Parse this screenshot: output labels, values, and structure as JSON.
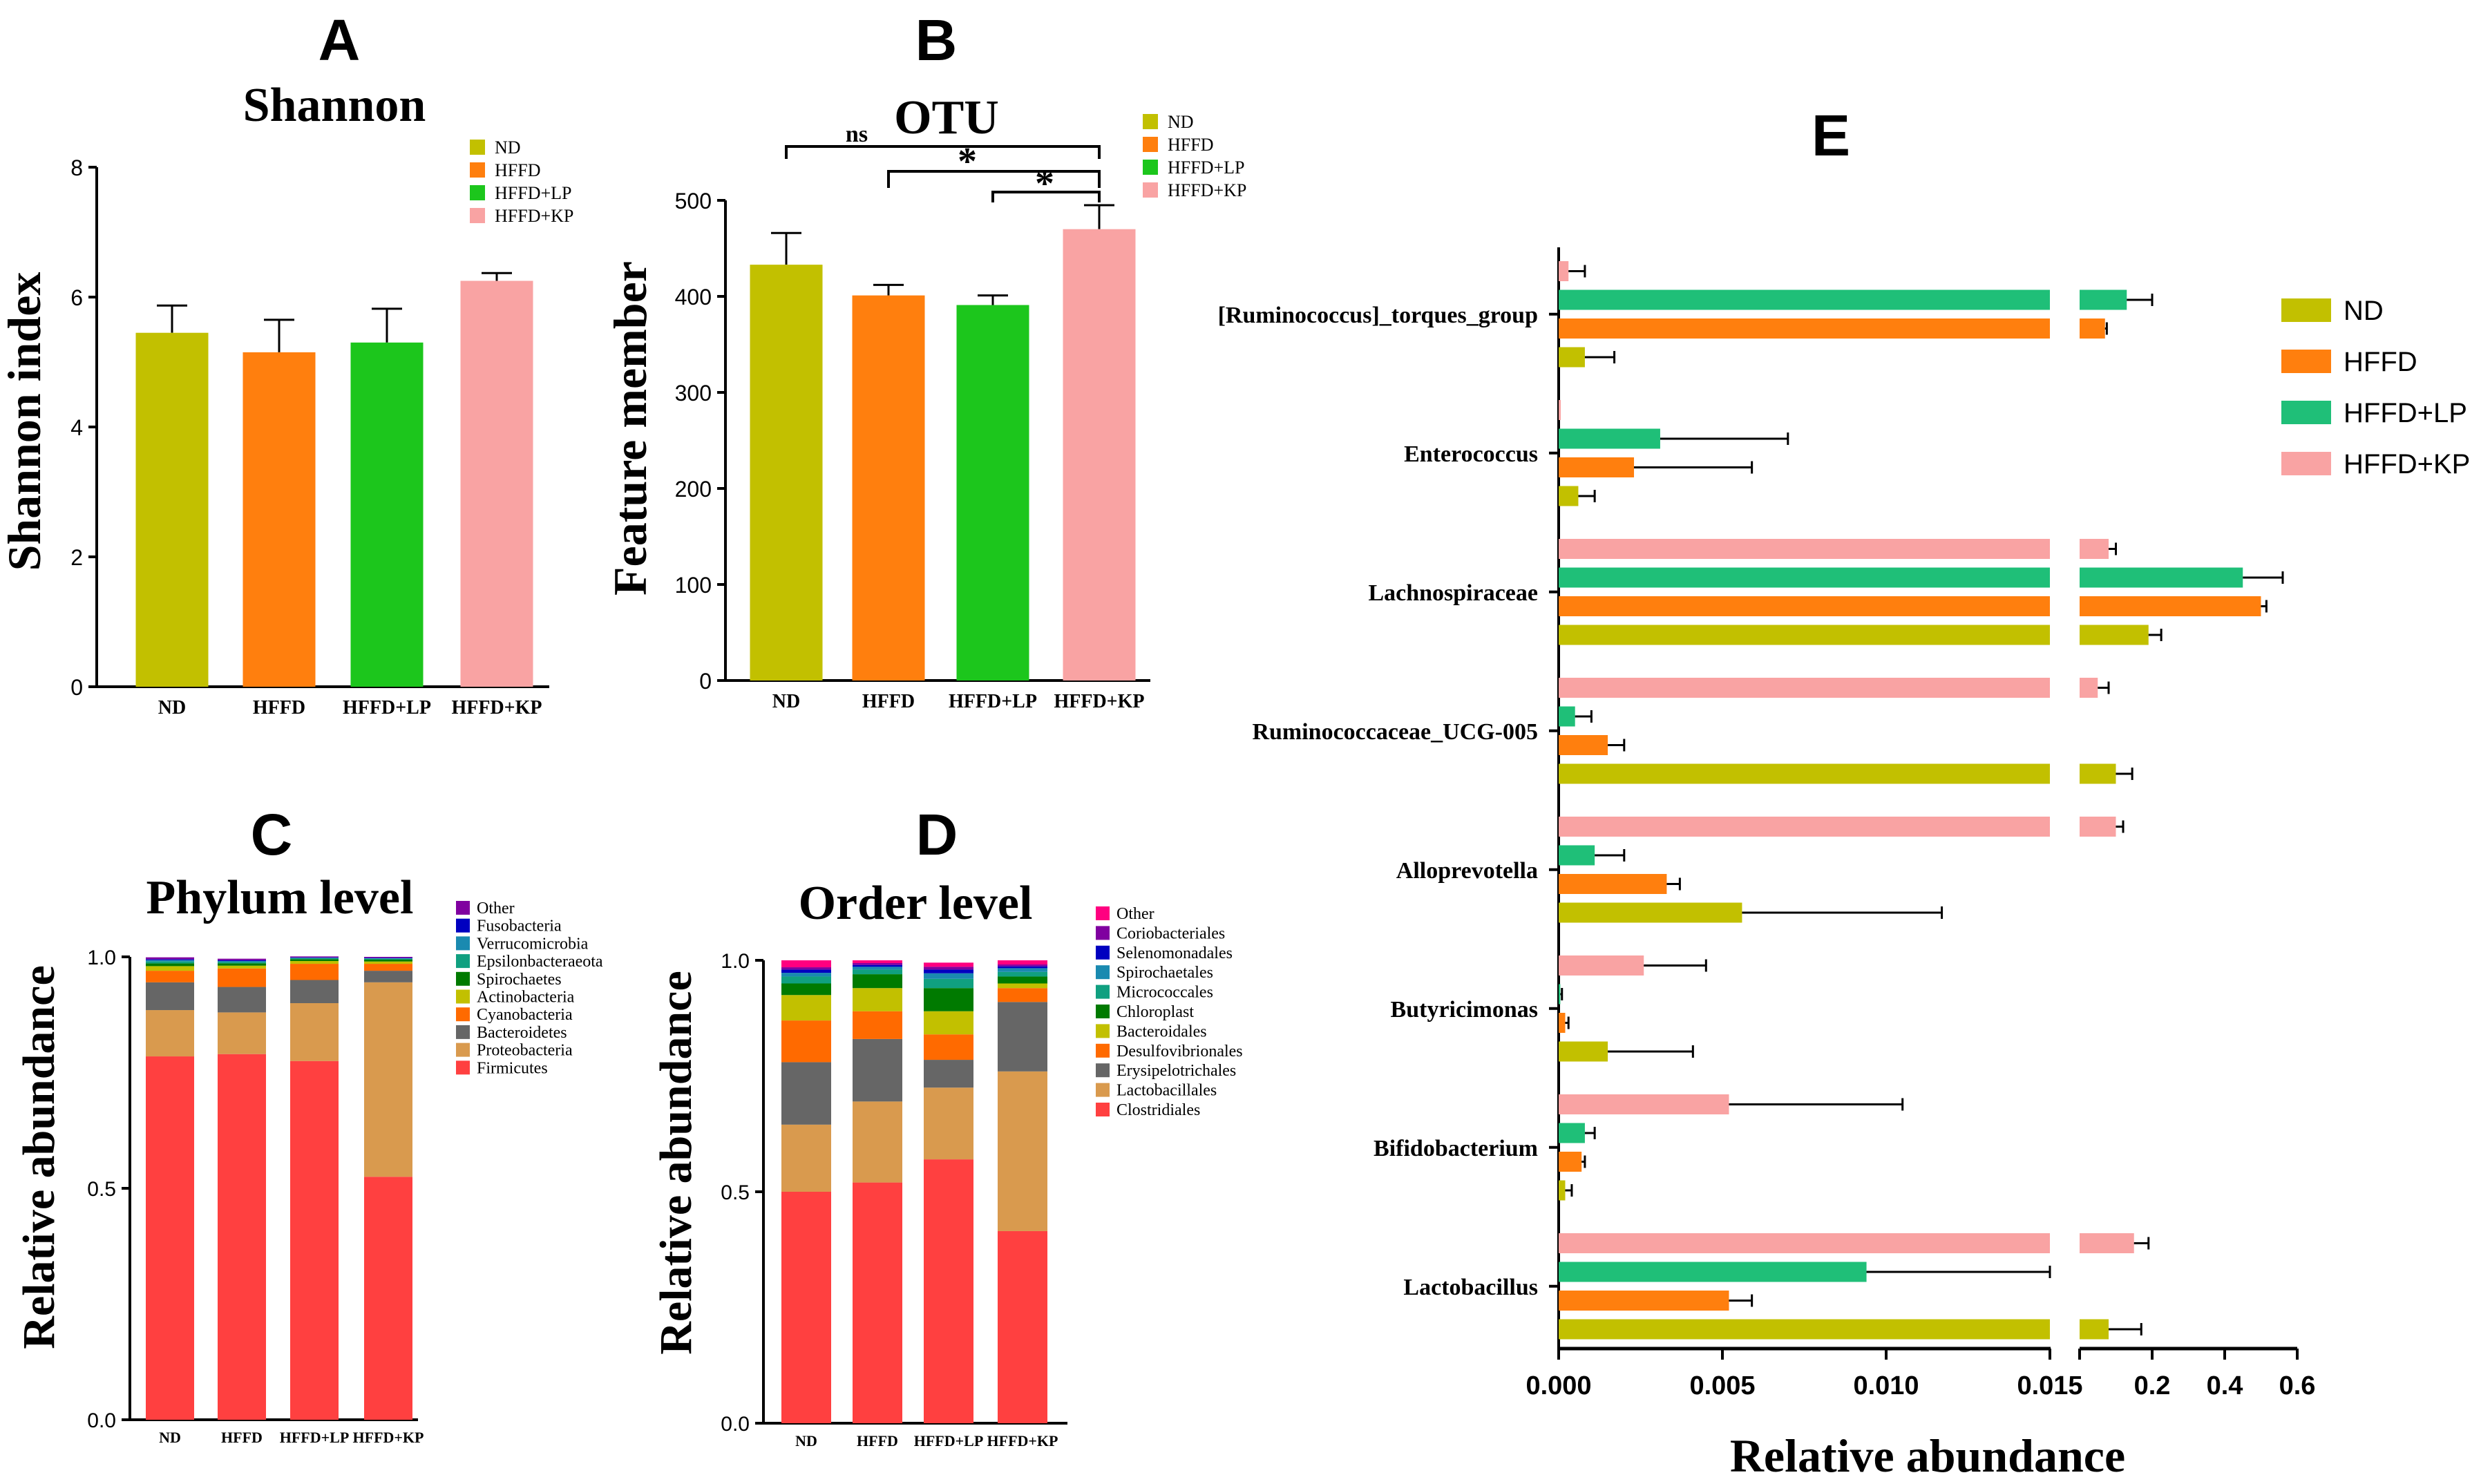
{
  "panel_labels": {
    "A": "A",
    "B": "B",
    "C": "C",
    "D": "D",
    "E": "E"
  },
  "colors": {
    "ND": "#c2c000",
    "HFFD": "#ff7f0e",
    "HFFD_LP_AB": "#1cc61c",
    "HFFD_LP_E": "#1fbf78",
    "HFFD_KP": "#f9a3a3"
  },
  "chart_data": [
    {
      "id": "A",
      "type": "bar",
      "title": "Shannon",
      "ylabel": "Shannon index",
      "xlabel": "",
      "categories": [
        "ND",
        "HFFD",
        "HFFD+LP",
        "HFFD+KP"
      ],
      "values": [
        5.45,
        5.15,
        5.3,
        6.25
      ],
      "errors": [
        0.42,
        0.5,
        0.52,
        0.12
      ],
      "ylim": [
        0,
        8
      ],
      "yticks": [
        "0",
        "2",
        "4",
        "6",
        "8"
      ],
      "legend": [
        "ND",
        "HFFD",
        "HFFD+LP",
        "HFFD+KP"
      ],
      "legend_position": "top-right"
    },
    {
      "id": "B",
      "type": "bar",
      "title": "OTU",
      "ylabel": "Feature member",
      "xlabel": "",
      "categories": [
        "ND",
        "HFFD",
        "HFFD+LP",
        "HFFD+KP"
      ],
      "values": [
        433,
        401,
        391,
        470
      ],
      "errors": [
        33,
        11,
        10,
        25
      ],
      "ylim": [
        0,
        500
      ],
      "yticks": [
        "0",
        "100",
        "200",
        "300",
        "400",
        "500"
      ],
      "legend": [
        "ND",
        "HFFD",
        "HFFD+LP",
        "HFFD+KP"
      ],
      "legend_position": "top-right",
      "significance": [
        {
          "from": "ND",
          "to": "HFFD+KP",
          "label": "ns"
        },
        {
          "from": "HFFD",
          "to": "HFFD+KP",
          "label": "*"
        },
        {
          "from": "HFFD+LP",
          "to": "HFFD+KP",
          "label": "*"
        }
      ]
    },
    {
      "id": "C",
      "type": "bar",
      "stacked": true,
      "title": "Phylum level",
      "ylabel": "Relative abundance",
      "categories": [
        "ND",
        "HFFD",
        "HFFD+LP",
        "HFFD+KP"
      ],
      "ylim": [
        0,
        1
      ],
      "yticks": [
        "0.0",
        "0.5",
        "1.0"
      ],
      "series": [
        {
          "name": "Firmicutes",
          "color": "#ff4040",
          "values": [
            0.785,
            0.79,
            0.775,
            0.525
          ]
        },
        {
          "name": "Proteobacteria",
          "color": "#d99a4e",
          "values": [
            0.1,
            0.09,
            0.125,
            0.42
          ]
        },
        {
          "name": "Bacteroidetes",
          "color": "#666666",
          "values": [
            0.06,
            0.055,
            0.05,
            0.025
          ]
        },
        {
          "name": "Cyanobacteria",
          "color": "#ff6a00",
          "values": [
            0.025,
            0.04,
            0.035,
            0.015
          ]
        },
        {
          "name": "Actinobacteria",
          "color": "#c2c000",
          "values": [
            0.01,
            0.006,
            0.006,
            0.005
          ]
        },
        {
          "name": "Spirochaetes",
          "color": "#007a00",
          "values": [
            0.006,
            0.005,
            0.004,
            0.004
          ]
        },
        {
          "name": "Epsilonbacteraeota",
          "color": "#10a080",
          "values": [
            0.004,
            0.003,
            0.002,
            0.002
          ]
        },
        {
          "name": "Verrucomicrobia",
          "color": "#1a8ab0",
          "values": [
            0.003,
            0.002,
            0.001,
            0.001
          ]
        },
        {
          "name": "Fusobacteria",
          "color": "#0000c0",
          "values": [
            0.002,
            0.002,
            0.001,
            0.001
          ]
        },
        {
          "name": "Other",
          "color": "#8000a0",
          "values": [
            0.004,
            0.003,
            0.002,
            0.002
          ]
        }
      ]
    },
    {
      "id": "D",
      "type": "bar",
      "stacked": true,
      "title": "Order level",
      "ylabel": "Relative abundance",
      "categories": [
        "ND",
        "HFFD",
        "HFFD+LP",
        "HFFD+KP"
      ],
      "ylim": [
        0,
        1
      ],
      "yticks": [
        "0.0",
        "0.5",
        "1.0"
      ],
      "series": [
        {
          "name": "Clostridiales",
          "color": "#ff4040",
          "values": [
            0.5,
            0.52,
            0.57,
            0.415
          ]
        },
        {
          "name": "Lactobacillales",
          "color": "#d99a4e",
          "values": [
            0.145,
            0.175,
            0.155,
            0.345
          ]
        },
        {
          "name": "Erysipelotrichales",
          "color": "#666666",
          "values": [
            0.135,
            0.135,
            0.06,
            0.15
          ]
        },
        {
          "name": "Desulfovibrionales",
          "color": "#ff6a00",
          "values": [
            0.09,
            0.06,
            0.055,
            0.03
          ]
        },
        {
          "name": "Bacteroidales",
          "color": "#c2c000",
          "values": [
            0.055,
            0.05,
            0.05,
            0.01
          ]
        },
        {
          "name": "Chloroplast",
          "color": "#007a00",
          "values": [
            0.025,
            0.03,
            0.05,
            0.015
          ]
        },
        {
          "name": "Micrococcales",
          "color": "#10a080",
          "values": [
            0.015,
            0.01,
            0.02,
            0.01
          ]
        },
        {
          "name": "Spirochaetales",
          "color": "#1a8ab0",
          "values": [
            0.008,
            0.006,
            0.012,
            0.008
          ]
        },
        {
          "name": "Selenomonadales",
          "color": "#0000c0",
          "values": [
            0.007,
            0.004,
            0.008,
            0.004
          ]
        },
        {
          "name": "Coriobacteriales",
          "color": "#8000a0",
          "values": [
            0.005,
            0.004,
            0.006,
            0.004
          ]
        },
        {
          "name": "Other",
          "color": "#ff0080",
          "values": [
            0.015,
            0.006,
            0.009,
            0.009
          ]
        }
      ]
    },
    {
      "id": "E",
      "type": "bar",
      "orientation": "horizontal",
      "xlabel": "Relative abundance",
      "xaxis_segments": [
        {
          "min": 0,
          "max": 0.015,
          "ticks": [
            "0.000",
            "0.005",
            "0.010",
            "0.015"
          ]
        },
        {
          "min": 0,
          "max": 0.6,
          "ticks": [
            "0.2",
            "0.4",
            "0.6"
          ]
        }
      ],
      "legend": [
        "ND",
        "HFFD",
        "HFFD+LP",
        "HFFD+KP"
      ],
      "legend_position": "right",
      "categories": [
        "[Ruminococcus]_torques_group",
        "Enterococcus",
        "Lachnospiraceae",
        "Ruminococcaceae_UCG-005",
        "Alloprevotella",
        "Butyricimonas",
        "Bifidobacterium",
        "Lactobacillus"
      ],
      "series": [
        {
          "name": "ND",
          "values": [
            0.0008,
            0.0006,
            0.19,
            0.1,
            0.0056,
            0.0015,
            0.0002,
            0.08
          ],
          "errors": [
            0.0009,
            0.0005,
            0.035,
            0.045,
            0.0061,
            0.0026,
            0.0002,
            0.09
          ]
        },
        {
          "name": "HFFD",
          "values": [
            0.07,
            0.0023,
            0.5,
            0.0015,
            0.0033,
            0.0002,
            0.0007,
            0.0052
          ],
          "errors": [
            0.005,
            0.0036,
            0.015,
            0.0005,
            0.0004,
            0.0001,
            0.0001,
            0.0007
          ]
        },
        {
          "name": "HFFD+LP",
          "values": [
            0.13,
            0.0031,
            0.45,
            0.0005,
            0.0011,
            5e-05,
            0.0008,
            0.0094
          ],
          "errors": [
            0.07,
            0.0039,
            0.11,
            0.0005,
            0.0009,
            5e-05,
            0.0003,
            0.0056
          ]
        },
        {
          "name": "HFFD+KP",
          "values": [
            0.0003,
            0.0,
            0.08,
            0.05,
            0.1,
            0.0026,
            0.0052,
            0.15
          ],
          "errors": [
            0.0005,
            0.0,
            0.02,
            0.03,
            0.02,
            0.0019,
            0.0053,
            0.04
          ]
        }
      ]
    }
  ]
}
